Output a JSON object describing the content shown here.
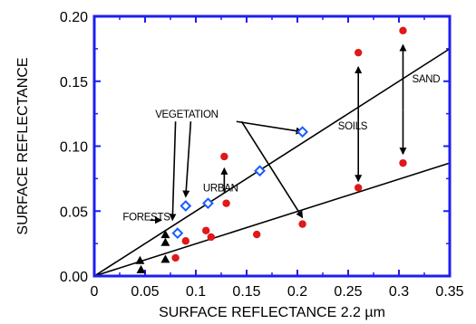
{
  "chart_data": {
    "type": "scatter",
    "xlabel": "SURFACE REFLECTANCE 2.2 µm",
    "ylabel": "SURFACE REFLECTANCE",
    "xlim": [
      0,
      0.35
    ],
    "ylim": [
      0,
      0.2
    ],
    "xticks": [
      "0",
      "0.05",
      "0.1",
      "0.15",
      "0.2",
      "0.25",
      "0.3",
      "0.35"
    ],
    "yticks": [
      "0.00",
      "0.05",
      "0.10",
      "0.15",
      "0.20"
    ],
    "xtick_values": [
      0,
      0.05,
      0.1,
      0.15,
      0.2,
      0.25,
      0.3,
      0.35
    ],
    "ytick_values": [
      0,
      0.05,
      0.1,
      0.15,
      0.2
    ],
    "grid": false,
    "series": [
      {
        "marker": "diamond",
        "color": "#1a5cff",
        "points": [
          [
            0.082,
            0.033
          ],
          [
            0.09,
            0.054
          ],
          [
            0.112,
            0.056
          ],
          [
            0.163,
            0.081
          ],
          [
            0.205,
            0.111
          ]
        ]
      },
      {
        "marker": "circle",
        "color": "#e01818",
        "points": [
          [
            0.08,
            0.014
          ],
          [
            0.09,
            0.027
          ],
          [
            0.11,
            0.035
          ],
          [
            0.115,
            0.03
          ],
          [
            0.128,
            0.092
          ],
          [
            0.13,
            0.056
          ],
          [
            0.16,
            0.032
          ],
          [
            0.205,
            0.04
          ],
          [
            0.26,
            0.172
          ],
          [
            0.26,
            0.068
          ],
          [
            0.304,
            0.189
          ],
          [
            0.304,
            0.087
          ]
        ]
      },
      {
        "marker": "triangle",
        "color": "#000000",
        "points": [
          [
            0.045,
            0.012
          ],
          [
            0.046,
            0.005
          ],
          [
            0.07,
            0.013
          ],
          [
            0.07,
            0.026
          ],
          [
            0.07,
            0.032
          ]
        ]
      }
    ],
    "fit_lines": [
      {
        "x": [
          0,
          0.35
        ],
        "y": [
          0,
          0.175
        ]
      },
      {
        "x": [
          0,
          0.35
        ],
        "y": [
          0,
          0.087
        ]
      }
    ],
    "annotations": [
      {
        "text": "VEGETATION",
        "x": 0.06,
        "y": 0.122
      },
      {
        "text": "URBAN",
        "x": 0.107,
        "y": 0.065
      },
      {
        "text": "FORESTS",
        "x": 0.028,
        "y": 0.043
      },
      {
        "text": "SOILS",
        "x": 0.24,
        "y": 0.113
      },
      {
        "text": "SAND",
        "x": 0.313,
        "y": 0.149
      }
    ],
    "arrows": [
      {
        "from": [
          0.14,
          0.119
        ],
        "to": [
          0.205,
          0.111
        ]
      },
      {
        "from": [
          0.095,
          0.119
        ],
        "to": [
          0.09,
          0.061
        ]
      },
      {
        "from": [
          0.08,
          0.119
        ],
        "to": [
          0.077,
          0.043
        ]
      },
      {
        "from": [
          0.145,
          0.119
        ],
        "to": [
          0.205,
          0.045
        ]
      },
      {
        "from": [
          0.128,
          0.064
        ],
        "to": [
          0.128,
          0.083
        ]
      },
      {
        "from": [
          0.055,
          0.043
        ],
        "to": [
          0.066,
          0.043
        ]
      },
      {
        "from": [
          0.26,
          0.128
        ],
        "to": [
          0.26,
          0.161
        ],
        "double_to": [
          0.26,
          0.073
        ]
      },
      {
        "from": [
          0.304,
          0.128
        ],
        "to": [
          0.304,
          0.178
        ],
        "double_to": [
          0.304,
          0.094
        ]
      }
    ]
  }
}
